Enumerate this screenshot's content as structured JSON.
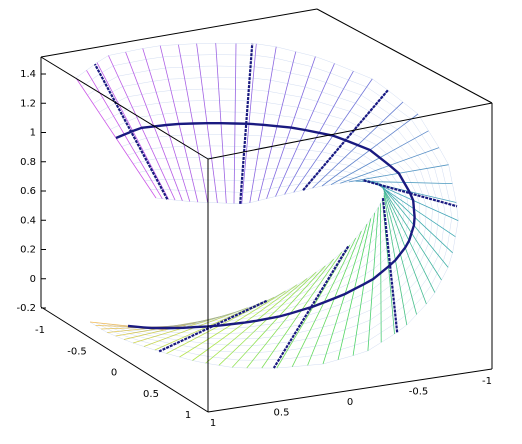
{
  "chart_data": {
    "type": "surface3d",
    "title": "",
    "xlabel": "",
    "ylabel": "",
    "zlabel": "",
    "surface": "helicoid ribbon (mesh), u in [0, 1.5*pi], v in [-0.25, 0.25]",
    "z_range": [
      -0.25,
      1.5
    ],
    "x_range": [
      -1,
      1
    ],
    "y_range": [
      -1,
      1
    ],
    "z_ticks": [
      "-0.2",
      "0",
      "0.2",
      "0.4",
      "0.6",
      "0.8",
      "1",
      "1.2",
      "1.4"
    ],
    "left_axis_ticks": [
      "-1",
      "-0.5",
      "0",
      "0.5",
      "1"
    ],
    "front_axis_ticks": [
      "1",
      "0.5",
      "0",
      "-0.5",
      "-1"
    ],
    "centerline": "spiral through ribbon center",
    "colors": {
      "box": "#000000",
      "mesh_high": "#c040e0",
      "mesh_mid": "#20b0a0",
      "mesh_low": "#f0c040",
      "highlight": "#1a1a80"
    },
    "grid": false,
    "legend": "none"
  }
}
